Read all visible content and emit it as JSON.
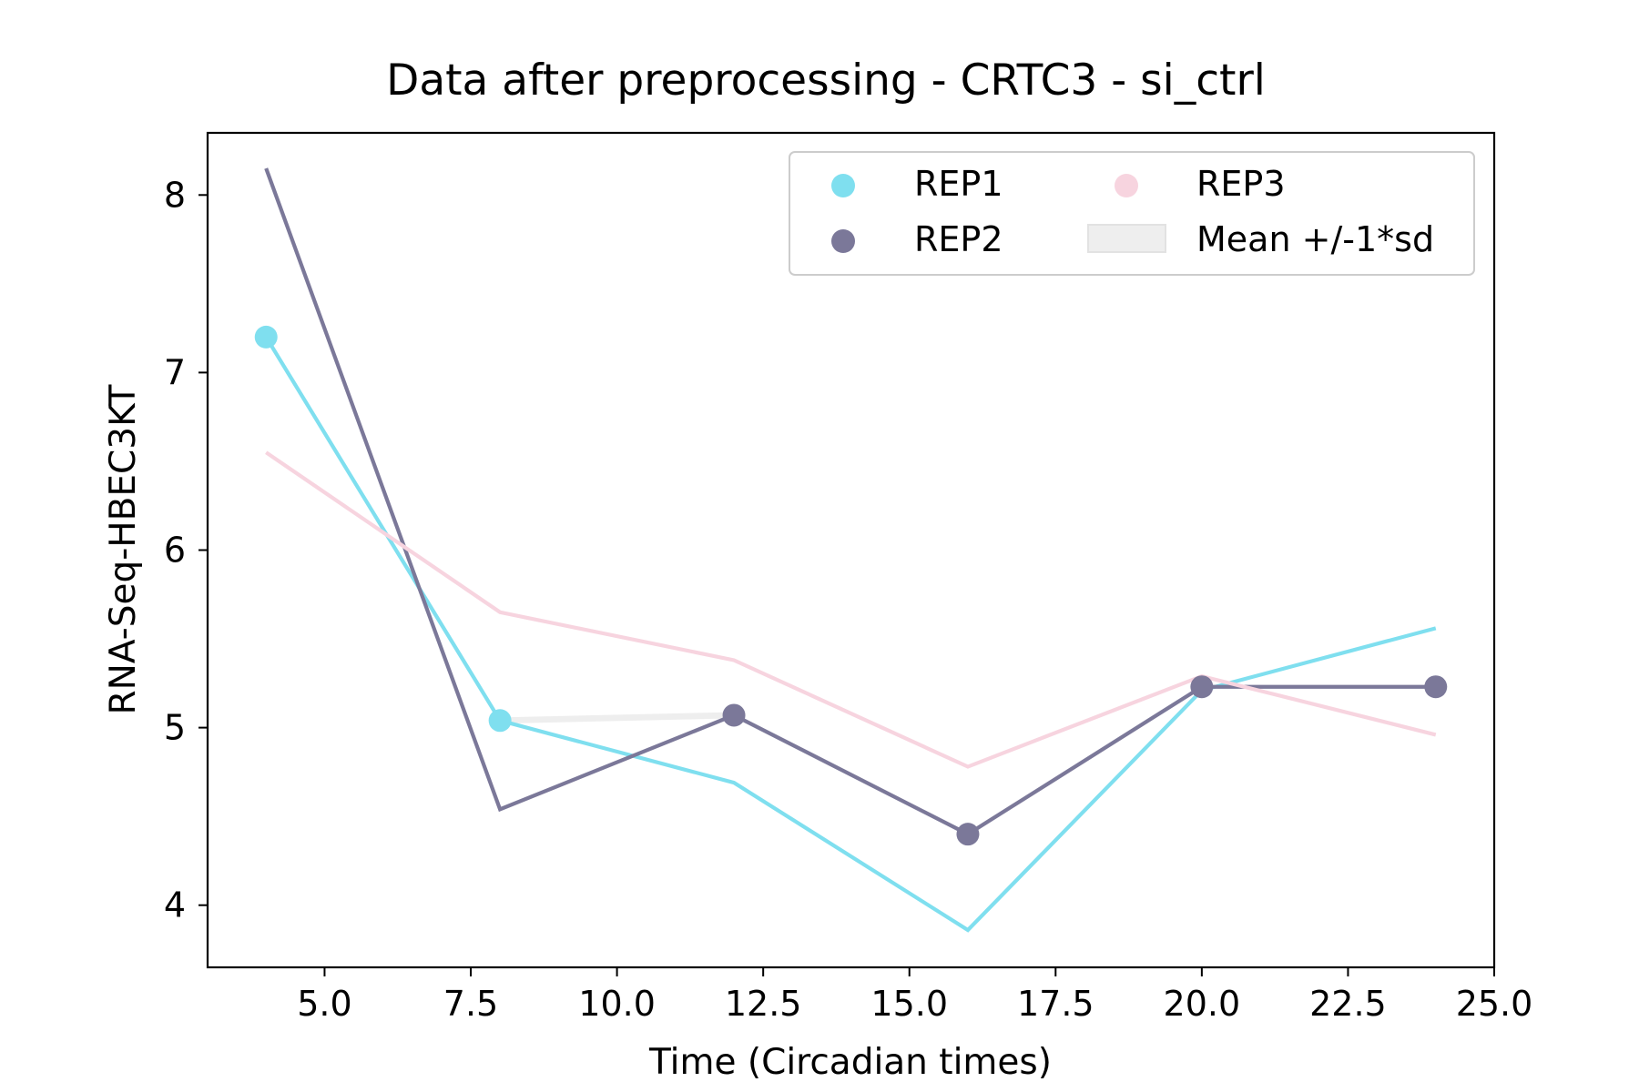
{
  "chart_data": {
    "type": "line",
    "title": "Data after preprocessing - CRTC3 - si_ctrl",
    "xlabel": "Time (Circadian times)",
    "ylabel": "RNA-Seq-HBEC3KT",
    "xlim": [
      3.0,
      25.0
    ],
    "ylim": [
      3.65,
      8.35
    ],
    "xticks": [
      5.0,
      7.5,
      10.0,
      12.5,
      15.0,
      17.5,
      20.0,
      22.5,
      25.0
    ],
    "xtick_labels": [
      "5.0",
      "7.5",
      "10.0",
      "12.5",
      "15.0",
      "17.5",
      "20.0",
      "22.5",
      "25.0"
    ],
    "yticks": [
      4,
      5,
      6,
      7,
      8
    ],
    "ytick_labels": [
      "4",
      "5",
      "6",
      "7",
      "8"
    ],
    "grid": false,
    "legend_position": "top-right",
    "series": [
      {
        "name": "REP1",
        "color": "#7fdfef",
        "x": [
          4,
          8,
          12,
          16,
          20,
          24
        ],
        "line": [
          7.2,
          5.04,
          4.69,
          3.86,
          5.21,
          5.56
        ],
        "points_x": [
          4,
          8
        ],
        "points_y": [
          7.2,
          5.04
        ]
      },
      {
        "name": "REP2",
        "color": "#7b7899",
        "x": [
          4,
          8,
          12,
          16,
          20,
          24
        ],
        "line": [
          8.15,
          4.54,
          5.07,
          4.4,
          5.23,
          5.23
        ],
        "points_x": [
          12,
          16,
          20,
          24
        ],
        "points_y": [
          5.07,
          4.4,
          5.23,
          5.23
        ]
      },
      {
        "name": "REP3",
        "color": "#f7d4df",
        "x": [
          4,
          8,
          12,
          16,
          20,
          24
        ],
        "line": [
          6.55,
          5.65,
          5.38,
          4.78,
          5.29,
          4.96
        ],
        "points_x": [],
        "points_y": []
      }
    ],
    "band": {
      "name": "Mean +/-1*sd",
      "color": "#eeeeee",
      "x": [
        8,
        12
      ],
      "lower": [
        5.03,
        5.06
      ],
      "upper": [
        5.05,
        5.08
      ]
    }
  }
}
